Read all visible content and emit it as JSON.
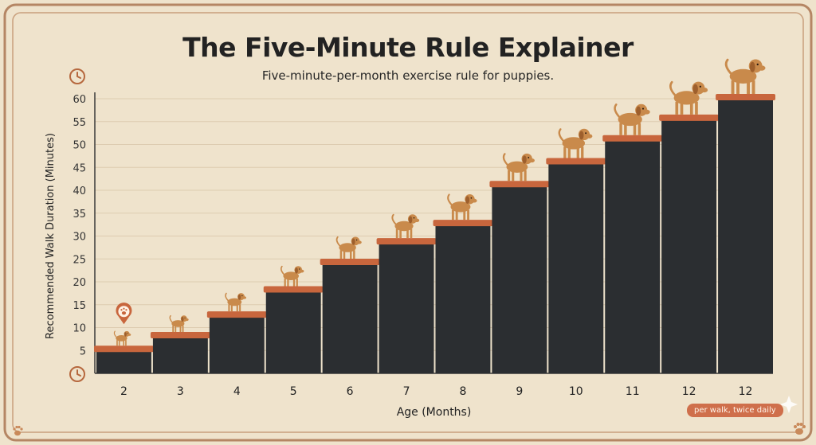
{
  "header": {
    "title": "The Five-Minute Rule Explainer",
    "subtitle": "Five-minute-per-month exercise rule for puppies."
  },
  "note": "per walk, twice daily",
  "colors": {
    "background": "#efe3cc",
    "bar": "#2b2e31",
    "step_edge": "#c8663d",
    "puppy": "#c98a4b",
    "accent": "#cf6f4b"
  },
  "icons": [
    "clock-icon",
    "paw-pin-icon",
    "puppy-icon",
    "paw-icon",
    "sparkle-icon"
  ],
  "chart_data": {
    "type": "bar",
    "title": "The Five-Minute Rule Explainer",
    "subtitle": "Five-minute-per-month exercise rule for puppies.",
    "xlabel": "Age (Months)",
    "ylabel": "Recommended Walk Duration (Minutes)",
    "categories": [
      "2",
      "3",
      "4",
      "5",
      "6",
      "7",
      "8",
      "9",
      "10",
      "11",
      "12",
      "12"
    ],
    "values": [
      5,
      8,
      12.5,
      18,
      24,
      28.5,
      32.5,
      41,
      46,
      51,
      55.5,
      60
    ],
    "ylim": [
      0,
      60
    ],
    "yticks": [
      5,
      10,
      15,
      20,
      25,
      30,
      35,
      40,
      45,
      50,
      55,
      60
    ],
    "grid": true,
    "legend": "none"
  }
}
